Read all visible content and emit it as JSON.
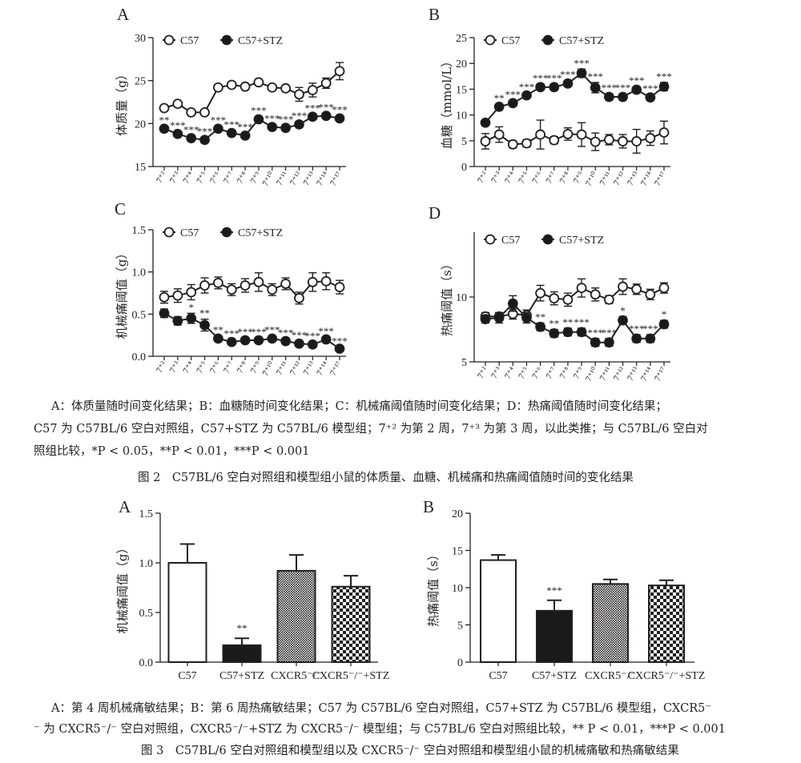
{
  "fig2": {
    "caption_lines": [
      "A：体质量随时间变化结果；B：血糖随时间变化结果；C：机械痛阈值随时间变化结果；D：热痛阈值随时间变化结果；",
      "C57 为 C57BL/6 空白对照组，C57+STZ 为 C57BL/6 模型组；7⁺² 为第 2 周，7⁺³ 为第 3 周，以此类推；与 C57BL/6 空白对",
      "照组比较，*P < 0.05，**P < 0.01，***P < 0.001"
    ],
    "title": "图 2　C57BL/6 空白对照组和模型组小鼠的体质量、血糖、机械痛和热痛阈值随时间的变化结果"
  },
  "fig3": {
    "caption_lines": [
      "A：第 4 周机械痛敏结果；B：第 6 周热痛敏结果；C57 为 C57BL/6 空白对照组，C57+STZ 为 C57BL/6 模型组，CXCR5⁻",
      "⁻ 为 CXCR5⁻/⁻ 空白对照组，CXCR5⁻/⁻+STZ 为 CXCR5⁻/⁻ 模型组；与 C57BL/6 空白对照组比较，** P < 0.01，***P < 0.001"
    ],
    "title": "图 3　C57BL/6 空白对照组和模型组以及 CXCR5⁻/⁻ 空白对照组和模型组小鼠的机械痛敏和热痛敏结果"
  },
  "colors": {
    "ink": "#231f20",
    "open_fill": "#ffffff",
    "closed_fill": "#1a1a1a"
  },
  "chart_data": [
    {
      "type": "line",
      "panel": "A",
      "ylabel": "体质量（g）",
      "ylim": [
        15,
        30
      ],
      "yticks": [
        15,
        20,
        25,
        30
      ],
      "x": [
        "7⁺²",
        "7⁺³",
        "7⁺⁴",
        "7⁺⁵",
        "7⁺⁶",
        "7⁺⁷",
        "7⁺⁸",
        "7⁺⁹",
        "7⁺¹⁰",
        "7⁺¹¹",
        "7⁺¹²",
        "7⁺¹³",
        "7⁺¹⁴",
        "7⁺¹⁷"
      ],
      "legend": "top-left",
      "series": [
        {
          "name": "C57",
          "marker": "open",
          "values": [
            21.8,
            22.3,
            21.3,
            21.3,
            24.2,
            24.5,
            24.3,
            24.8,
            24.2,
            24.1,
            23.4,
            23.9,
            24.7,
            26.1
          ],
          "errors": [
            0.3,
            0.3,
            0.3,
            0.3,
            0.3,
            0.3,
            0.3,
            0.3,
            0.3,
            0.3,
            0.8,
            0.8,
            0.6,
            1.0
          ]
        },
        {
          "name": "C57+STZ",
          "marker": "filled",
          "values": [
            19.4,
            18.8,
            18.3,
            18.1,
            19.4,
            18.9,
            18.6,
            20.5,
            19.6,
            19.5,
            19.9,
            20.8,
            20.9,
            20.6
          ],
          "errors": [
            0.3,
            0.3,
            0.3,
            0.3,
            0.3,
            0.3,
            0.3,
            0.3,
            0.3,
            0.3,
            0.3,
            0.3,
            0.3,
            0.3
          ],
          "stars": [
            "**",
            "***",
            "***",
            "***",
            "***",
            "***",
            "***",
            "***",
            "***",
            "***",
            "***",
            "***",
            "***",
            "***"
          ]
        }
      ]
    },
    {
      "type": "line",
      "panel": "B",
      "ylabel": "血糖（mmol/L）",
      "ylim": [
        0,
        25
      ],
      "yticks": [
        0,
        5,
        10,
        15,
        20,
        25
      ],
      "x": [
        "7⁺²",
        "7⁺³",
        "7⁺⁴",
        "7⁺⁵",
        "7⁺⁶",
        "7⁺⁷",
        "7⁺⁸",
        "7⁺⁹",
        "7⁺¹⁰",
        "7⁺¹¹",
        "7⁺¹²",
        "7⁺¹³",
        "7⁺¹⁴",
        "7⁺¹⁷"
      ],
      "legend": "top-left",
      "series": [
        {
          "name": "C57",
          "marker": "open",
          "values": [
            4.9,
            6.2,
            4.3,
            4.5,
            6.2,
            5.1,
            6.3,
            6.2,
            4.8,
            5.2,
            4.9,
            4.9,
            5.5,
            6.6
          ],
          "errors": [
            1.5,
            1.5,
            0.7,
            0.7,
            2.8,
            0.7,
            1.2,
            2.3,
            1.7,
            1.0,
            1.3,
            2.3,
            1.4,
            2.2
          ]
        },
        {
          "name": "C57+STZ",
          "marker": "filled",
          "values": [
            8.5,
            11.6,
            12.3,
            13.8,
            15.4,
            15.4,
            16.1,
            18.1,
            15.3,
            13.5,
            13.5,
            14.9,
            13.4,
            15.5
          ],
          "errors": [
            0.5,
            0.5,
            0.5,
            0.5,
            0.6,
            0.6,
            0.6,
            0.8,
            1.0,
            0.6,
            0.6,
            0.6,
            0.6,
            0.8
          ],
          "stars": [
            "",
            "**",
            "***",
            "***",
            "***",
            "***",
            "***",
            "***",
            "***",
            "***",
            "***",
            "***",
            "***",
            "***"
          ]
        }
      ]
    },
    {
      "type": "line",
      "panel": "C",
      "ylabel": "机械痛阈值（g）",
      "ylim": [
        0.0,
        1.5
      ],
      "yticks": [
        "0.0",
        "0.5",
        "1.0",
        "1.5"
      ],
      "x": [
        "7⁺²",
        "7⁺³",
        "7⁺⁴",
        "7⁺⁵",
        "7⁺⁶",
        "7⁺⁷",
        "7⁺⁸",
        "7⁺⁹",
        "7⁺¹⁰",
        "7⁺¹¹",
        "7⁺¹²",
        "7⁺¹³",
        "7⁺¹⁴",
        "7⁺¹⁷"
      ],
      "legend": "top-left",
      "series": [
        {
          "name": "C57",
          "marker": "open",
          "values": [
            0.7,
            0.72,
            0.76,
            0.84,
            0.87,
            0.79,
            0.84,
            0.88,
            0.79,
            0.86,
            0.69,
            0.88,
            0.89,
            0.82
          ],
          "errors": [
            0.07,
            0.08,
            0.09,
            0.09,
            0.07,
            0.07,
            0.08,
            0.11,
            0.07,
            0.07,
            0.07,
            0.11,
            0.1,
            0.08
          ]
        },
        {
          "name": "C57+STZ",
          "marker": "filled",
          "values": [
            0.51,
            0.42,
            0.45,
            0.37,
            0.21,
            0.17,
            0.19,
            0.19,
            0.21,
            0.18,
            0.15,
            0.14,
            0.2,
            0.09
          ],
          "errors": [
            0.05,
            0.05,
            0.06,
            0.07,
            0.03,
            0.03,
            0.03,
            0.03,
            0.03,
            0.03,
            0.03,
            0.03,
            0.03,
            0.02
          ],
          "stars": [
            "",
            "",
            "*",
            "**",
            "**",
            "***",
            "***",
            "***",
            "***",
            "***",
            "***",
            "***",
            "***",
            "***"
          ]
        }
      ]
    },
    {
      "type": "line",
      "panel": "D",
      "ylabel": "热痛阈值（s）",
      "ylim": [
        5,
        15
      ],
      "yticks": [
        5,
        10
      ],
      "x": [
        "7⁺²",
        "7⁺³",
        "7⁺⁴",
        "7⁺⁵",
        "7⁺⁶",
        "7⁺⁷",
        "7⁺⁸",
        "7⁺⁹",
        "7⁺¹⁰",
        "7⁺¹¹",
        "7⁺¹²",
        "7⁺¹³",
        "7⁺¹⁴",
        "7⁺¹⁷"
      ],
      "legend": "top-left",
      "series": [
        {
          "name": "C57",
          "marker": "open",
          "values": [
            8.5,
            8.5,
            8.7,
            8.6,
            10.3,
            9.9,
            9.8,
            10.7,
            10.2,
            9.8,
            10.8,
            10.6,
            10.2,
            10.7
          ],
          "errors": [
            0.3,
            0.3,
            0.4,
            0.4,
            0.6,
            0.5,
            0.5,
            0.7,
            0.5,
            0.3,
            0.6,
            0.4,
            0.4,
            0.4
          ]
        },
        {
          "name": "C57+STZ",
          "marker": "filled",
          "values": [
            8.3,
            8.4,
            9.5,
            8.4,
            7.7,
            7.2,
            7.3,
            7.3,
            6.5,
            6.5,
            8.2,
            6.8,
            6.8,
            7.9
          ],
          "errors": [
            0.3,
            0.4,
            0.6,
            0.4,
            0.3,
            0.3,
            0.3,
            0.3,
            0.3,
            0.3,
            0.3,
            0.3,
            0.3,
            0.3
          ],
          "stars": [
            "",
            "",
            "",
            "",
            "**",
            "**",
            "**",
            "***",
            "***",
            "***",
            "*",
            "***",
            "***",
            "*"
          ]
        }
      ]
    },
    {
      "type": "bar",
      "panel": "A",
      "ylabel": "机械痛阈值（g）",
      "ylim": [
        0.0,
        1.5
      ],
      "yticks": [
        "0.0",
        "0.5",
        "1.0",
        "1.5"
      ],
      "categories": [
        "C57",
        "C57+STZ",
        "CXCR5⁻/⁻",
        "CXCR5⁻/⁻+STZ"
      ],
      "values": [
        1.0,
        0.17,
        0.92,
        0.76
      ],
      "errors": [
        0.19,
        0.07,
        0.16,
        0.11
      ],
      "fills": [
        "white",
        "black",
        "dots",
        "checker"
      ],
      "stars": [
        "",
        "**",
        "",
        ""
      ]
    },
    {
      "type": "bar",
      "panel": "B",
      "ylabel": "热痛阈值（s）",
      "ylim": [
        0,
        20
      ],
      "yticks": [
        "0",
        "5",
        "10",
        "15",
        "20"
      ],
      "categories": [
        "C57",
        "C57+STZ",
        "CXCR5⁻/⁻",
        "CXCR5⁻/⁻+STZ"
      ],
      "values": [
        13.7,
        6.9,
        10.5,
        10.3
      ],
      "errors": [
        0.7,
        1.4,
        0.6,
        0.7
      ],
      "fills": [
        "white",
        "black",
        "dots",
        "checker"
      ],
      "stars": [
        "",
        "***",
        "",
        ""
      ]
    }
  ]
}
